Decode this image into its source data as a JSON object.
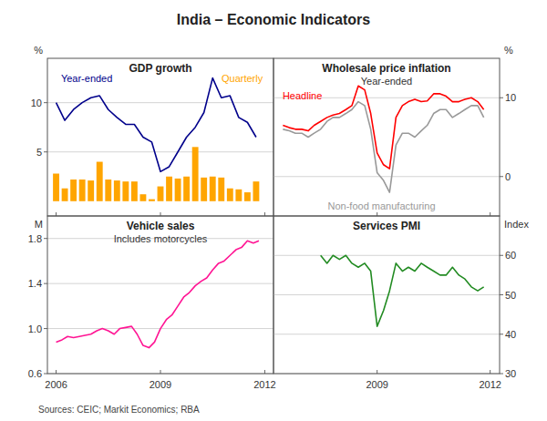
{
  "title": "India – Economic Indicators",
  "annotations": [
    "Sources: CEIC; Markit Economics; RBA"
  ],
  "chart_data": [
    {
      "type": "bar",
      "title": "GDP growth",
      "ylabel": "%",
      "x": [
        2006.0,
        2006.25,
        2006.5,
        2006.75,
        2007.0,
        2007.25,
        2007.5,
        2007.75,
        2008.0,
        2008.25,
        2008.5,
        2008.75,
        2009.0,
        2009.25,
        2009.5,
        2009.75,
        2010.0,
        2010.25,
        2010.5,
        2010.75,
        2011.0,
        2011.25,
        2011.5,
        2011.75
      ],
      "series": [
        {
          "name": "Quarterly",
          "type": "bar",
          "color": "#FFA500",
          "values": [
            2.8,
            1.3,
            2.2,
            2.2,
            2.1,
            4.0,
            2.2,
            2.1,
            2.0,
            2.0,
            0.7,
            0.2,
            1.5,
            2.5,
            2.3,
            2.5,
            5.5,
            2.4,
            2.5,
            2.4,
            1.3,
            1.2,
            0.9,
            2.0
          ]
        },
        {
          "name": "Year-ended",
          "type": "line",
          "color": "#00008B",
          "values": [
            10.0,
            8.2,
            9.3,
            10.0,
            10.5,
            10.7,
            9.3,
            8.5,
            7.8,
            7.8,
            6.5,
            6.0,
            3.0,
            3.5,
            5.0,
            6.5,
            7.5,
            9.0,
            12.5,
            10.5,
            10.7,
            8.5,
            8.0,
            6.5
          ]
        }
      ],
      "xlim": [
        2005.75,
        2012.25
      ],
      "xticks": [
        2006,
        2009,
        2012
      ],
      "ylim": [
        -1.5,
        14.5
      ],
      "yticks": [
        5,
        10
      ],
      "grid": true,
      "tick_labels": "y"
    },
    {
      "type": "line",
      "title": "Wholesale price inflation",
      "subtitle": "Year-ended",
      "ylabel": "%",
      "x": [
        2006.5,
        2006.67,
        2006.83,
        2007.0,
        2007.17,
        2007.33,
        2007.5,
        2007.67,
        2007.83,
        2008.0,
        2008.17,
        2008.33,
        2008.5,
        2008.67,
        2008.83,
        2009.0,
        2009.17,
        2009.33,
        2009.5,
        2009.67,
        2009.83,
        2010.0,
        2010.17,
        2010.33,
        2010.5,
        2010.67,
        2010.83,
        2011.0,
        2011.17,
        2011.33,
        2011.5,
        2011.67,
        2011.83
      ],
      "series": [
        {
          "name": "Headline",
          "color": "#FF0000",
          "values": [
            6.5,
            6.2,
            6.0,
            6.0,
            5.8,
            6.5,
            7.0,
            7.5,
            7.8,
            8.0,
            8.5,
            9.0,
            11.5,
            11.0,
            8.0,
            3.0,
            1.5,
            1.0,
            7.5,
            9.0,
            9.5,
            9.8,
            9.5,
            9.6,
            10.5,
            10.5,
            10.2,
            9.5,
            9.5,
            9.8,
            10.0,
            9.5,
            8.5
          ]
        },
        {
          "name": "Non-food manufacturing",
          "color": "#999999",
          "values": [
            6.0,
            5.8,
            5.5,
            5.5,
            5.0,
            5.5,
            6.0,
            7.0,
            7.5,
            7.5,
            8.0,
            8.5,
            9.5,
            9.0,
            6.0,
            0.5,
            -0.5,
            -2.0,
            4.0,
            5.5,
            5.5,
            5.0,
            5.8,
            6.5,
            8.0,
            8.5,
            8.5,
            7.5,
            8.0,
            8.5,
            9.0,
            9.0,
            7.5
          ]
        }
      ],
      "xlim": [
        2006.25,
        2012.25
      ],
      "xticks": [
        2009,
        2012
      ],
      "ylim": [
        -5,
        15
      ],
      "yticks": [
        0,
        10
      ],
      "grid": true,
      "tick_labels": "y"
    },
    {
      "type": "line",
      "title": "Vehicle sales",
      "subtitle": "Includes motorcycles",
      "ylabel": "M",
      "x": [
        2006.0,
        2006.17,
        2006.33,
        2006.5,
        2006.67,
        2006.83,
        2007.0,
        2007.17,
        2007.33,
        2007.5,
        2007.67,
        2007.83,
        2008.0,
        2008.17,
        2008.33,
        2008.5,
        2008.67,
        2008.83,
        2009.0,
        2009.17,
        2009.33,
        2009.5,
        2009.67,
        2009.83,
        2010.0,
        2010.17,
        2010.33,
        2010.5,
        2010.67,
        2010.83,
        2011.0,
        2011.17,
        2011.33,
        2011.5,
        2011.67,
        2011.83
      ],
      "values": [
        0.88,
        0.9,
        0.93,
        0.92,
        0.93,
        0.94,
        0.95,
        0.98,
        1.0,
        0.98,
        0.95,
        1.0,
        1.01,
        1.02,
        0.95,
        0.85,
        0.83,
        0.88,
        1.0,
        1.08,
        1.12,
        1.2,
        1.28,
        1.32,
        1.38,
        1.42,
        1.45,
        1.52,
        1.58,
        1.6,
        1.65,
        1.7,
        1.72,
        1.78,
        1.76,
        1.78
      ],
      "color": "#FF1493",
      "xlim": [
        2005.75,
        2012.25
      ],
      "xticks": [
        2006,
        2009,
        2012
      ],
      "ylim": [
        0.6,
        2.0
      ],
      "yticks": [
        {
          "value": 0.6,
          "label": "0.6"
        },
        {
          "value": 1.0,
          "label": "1.0"
        },
        1.4,
        1.8
      ],
      "grid": true
    },
    {
      "type": "line",
      "title": "Services PMI",
      "ylabel": "Index",
      "x": [
        2007.5,
        2007.67,
        2007.83,
        2008.0,
        2008.17,
        2008.33,
        2008.5,
        2008.67,
        2008.83,
        2009.0,
        2009.17,
        2009.33,
        2009.5,
        2009.67,
        2009.83,
        2010.0,
        2010.17,
        2010.33,
        2010.5,
        2010.67,
        2010.83,
        2011.0,
        2011.17,
        2011.33,
        2011.5,
        2011.67,
        2011.83
      ],
      "values": [
        60,
        58,
        60,
        59,
        60,
        58,
        57,
        58,
        56,
        42,
        46,
        51,
        58,
        56,
        57,
        56,
        58,
        57,
        56,
        55,
        55,
        57,
        55,
        54,
        52,
        51,
        52
      ],
      "color": "#228B22",
      "xlim": [
        2006.25,
        2012.25
      ],
      "xticks": [
        2009,
        2012
      ],
      "ylim": [
        30,
        70
      ],
      "yticks": [
        30,
        40,
        50,
        60
      ],
      "grid": true
    }
  ]
}
